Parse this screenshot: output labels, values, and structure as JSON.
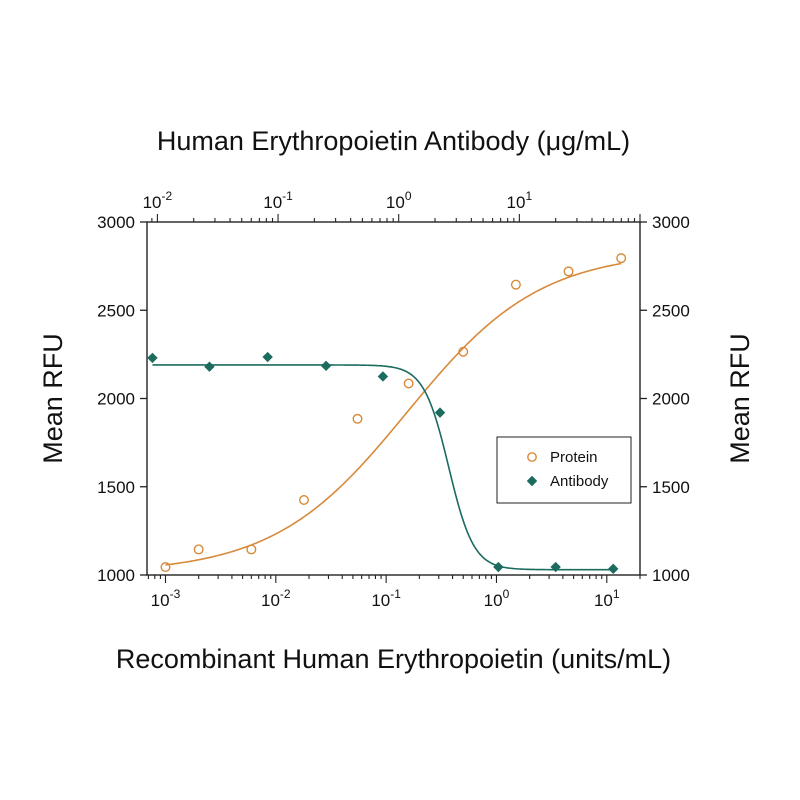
{
  "chart_data": {
    "type": "scatter",
    "title": "",
    "x2label": "Human Erythropoietin Antibody (μg/mL)",
    "xlabel": "Recombinant Human Erythropoietin (units/mL)",
    "ylabel": "Mean RFU",
    "ylabel_right": "Mean RFU",
    "xscale": "log",
    "xlim": [
      0.00068,
      20
    ],
    "x2lim": [
      0.0082,
      100
    ],
    "ylim": [
      1000,
      3000
    ],
    "yticks": [
      "1000",
      "1500",
      "2000",
      "2500",
      "3000"
    ],
    "xticks": [
      {
        "base": "10",
        "exp": "-3",
        "value": 0.001
      },
      {
        "base": "10",
        "exp": "-2",
        "value": 0.01
      },
      {
        "base": "10",
        "exp": "-1",
        "value": 0.1
      },
      {
        "base": "10",
        "exp": "0",
        "value": 1
      },
      {
        "base": "10",
        "exp": "1",
        "value": 10
      }
    ],
    "x2ticks": [
      {
        "base": "10",
        "exp": "-2",
        "value": 0.01
      },
      {
        "base": "10",
        "exp": "-1",
        "value": 0.1
      },
      {
        "base": "10",
        "exp": "0",
        "value": 1
      },
      {
        "base": "10",
        "exp": "1",
        "value": 10
      }
    ],
    "grid": false,
    "legend_position": "right",
    "series": [
      {
        "name": "Protein",
        "axis": "bottom",
        "marker": "open-circle",
        "color": "#d88a3a",
        "x": [
          0.001,
          0.002,
          0.006,
          0.018,
          0.055,
          0.16,
          0.5,
          1.5,
          4.5,
          13.5
        ],
        "y": [
          1045,
          1145,
          1145,
          1425,
          1885,
          2085,
          2265,
          2645,
          2720,
          2795
        ]
      },
      {
        "name": "Antibody",
        "axis": "top",
        "marker": "filled-diamond",
        "color": "#1c6b5f",
        "x": [
          0.0091,
          0.027,
          0.082,
          0.25,
          0.74,
          2.2,
          6.7,
          20,
          60
        ],
        "y": [
          2230,
          2180,
          2235,
          2185,
          2125,
          1920,
          1045,
          1045,
          1035
        ]
      }
    ]
  }
}
